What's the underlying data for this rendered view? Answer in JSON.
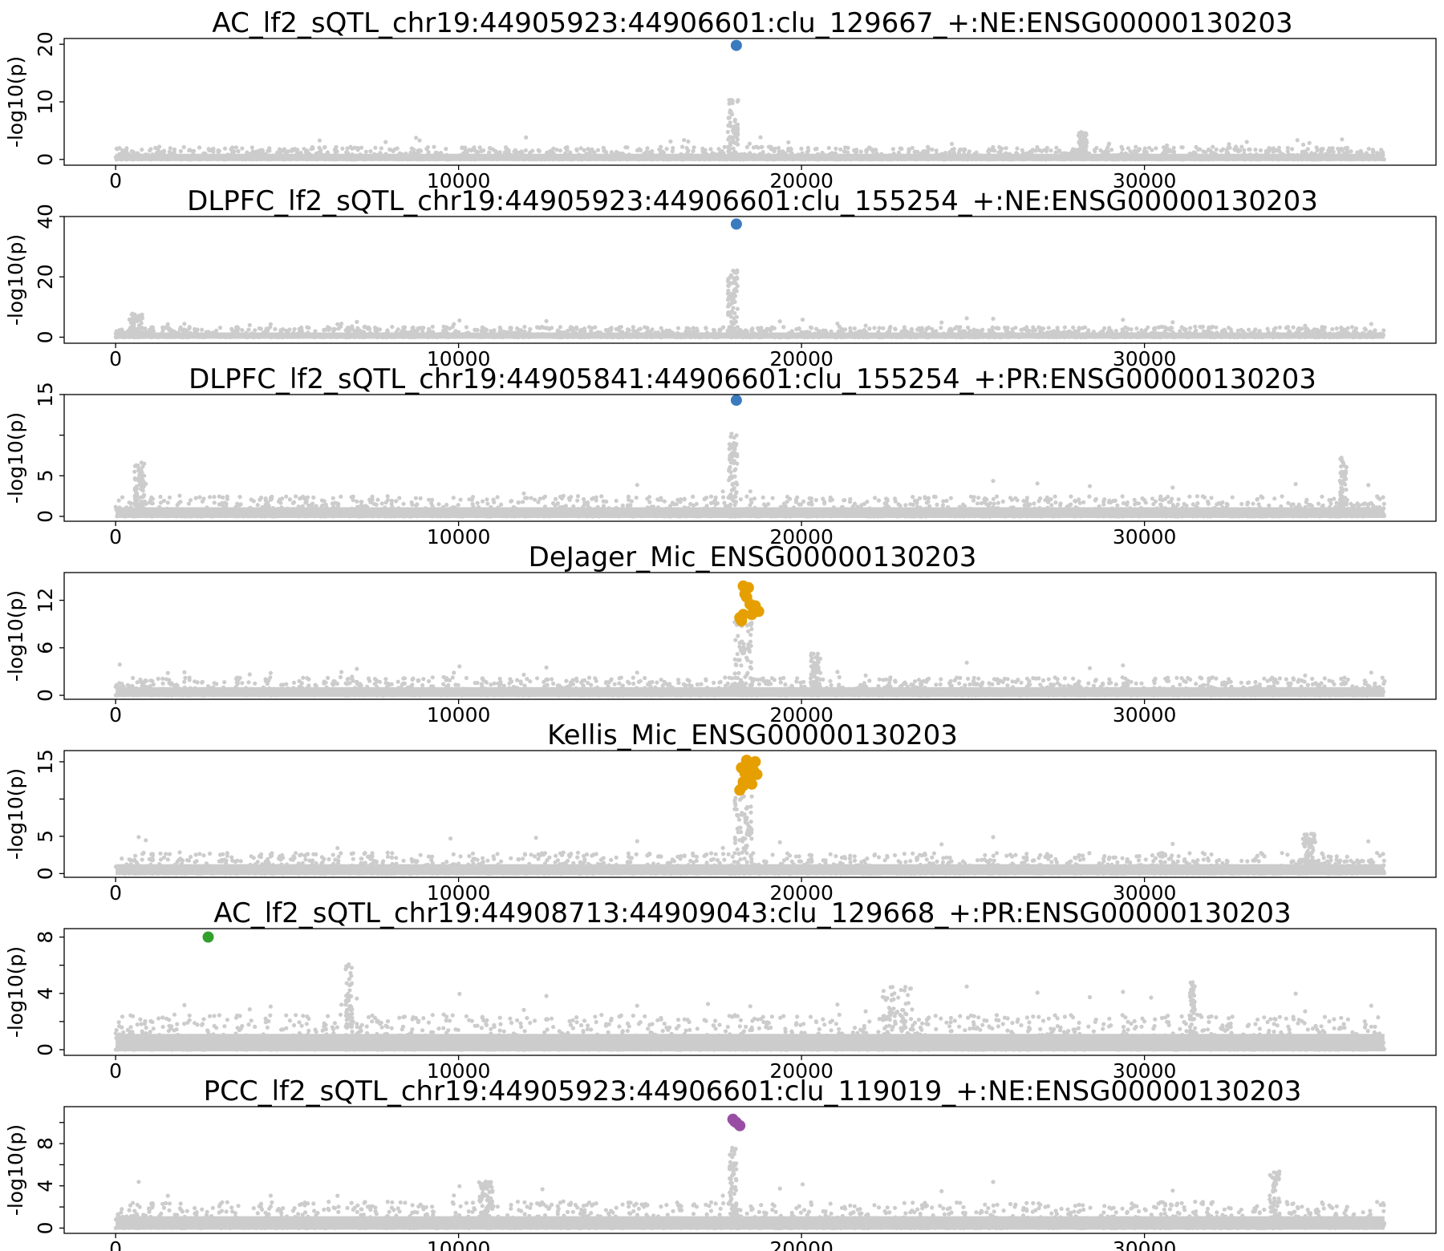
{
  "chart_data": [
    {
      "type": "scatter",
      "title": "AC_lf2_sQTL_chr19:44905923:44906601:clu_129667_+:NE:ENSG00000130203",
      "xlabel": "",
      "ylabel": "-log10(p)",
      "xlim": [
        -1500,
        38500
      ],
      "ylim": [
        -1,
        21
      ],
      "xticks": [
        0,
        10000,
        20000,
        30000
      ],
      "yticks": [
        0,
        10,
        20
      ],
      "x_extent": [
        0,
        37000
      ],
      "background": {
        "color": "#cccccc",
        "baseline_max": 2.2,
        "peaks": [
          {
            "x": 18000,
            "height": 10.5,
            "width": 300
          },
          {
            "x": 28200,
            "height": 4.8,
            "width": 250
          }
        ]
      },
      "highlight": {
        "color": "#3a7bbf",
        "points": [
          {
            "x": 18100,
            "y": 19.8
          }
        ]
      }
    },
    {
      "type": "scatter",
      "title": "DLPFC_lf2_sQTL_chr19:44905923:44906601:clu_155254_+:NE:ENSG00000130203",
      "xlabel": "",
      "ylabel": "-log10(p)",
      "xlim": [
        -1500,
        38500
      ],
      "ylim": [
        -2,
        40
      ],
      "xticks": [
        0,
        10000,
        20000,
        30000
      ],
      "yticks": [
        0,
        20,
        40
      ],
      "x_extent": [
        0,
        37000
      ],
      "background": {
        "color": "#cccccc",
        "baseline_max": 3.5,
        "peaks": [
          {
            "x": 18000,
            "height": 23,
            "width": 300
          },
          {
            "x": 600,
            "height": 8,
            "width": 400
          }
        ]
      },
      "highlight": {
        "color": "#3a7bbf",
        "points": [
          {
            "x": 18100,
            "y": 37.5
          }
        ]
      }
    },
    {
      "type": "scatter",
      "title": "DLPFC_lf2_sQTL_chr19:44905841:44906601:clu_155254_+:PR:ENSG00000130203",
      "xlabel": "",
      "ylabel": "-log10(p)",
      "xlim": [
        -1500,
        38500
      ],
      "ylim": [
        -0.6,
        15
      ],
      "xticks": [
        0,
        10000,
        20000,
        30000
      ],
      "yticks": [
        0,
        5,
        10,
        15
      ],
      "ytick_labels": [
        "0",
        "5",
        "",
        "15"
      ],
      "x_extent": [
        0,
        37000
      ],
      "background": {
        "color": "#cccccc",
        "baseline_max": 2.5,
        "peaks": [
          {
            "x": 18000,
            "height": 10.3,
            "width": 250
          },
          {
            "x": 35800,
            "height": 7.3,
            "width": 200
          },
          {
            "x": 700,
            "height": 6.7,
            "width": 300
          }
        ]
      },
      "highlight": {
        "color": "#3a7bbf",
        "points": [
          {
            "x": 18100,
            "y": 14.3
          }
        ]
      }
    },
    {
      "type": "scatter",
      "title": "DeJager_Mic_ENSG00000130203",
      "xlabel": "",
      "ylabel": "-log10(p)",
      "xlim": [
        -1500,
        38500
      ],
      "ylim": [
        -0.5,
        15.5
      ],
      "xticks": [
        0,
        10000,
        20000,
        30000
      ],
      "yticks": [
        0,
        6,
        12
      ],
      "x_extent": [
        0,
        37000
      ],
      "background": {
        "color": "#cccccc",
        "baseline_max": 2.3,
        "peaks": [
          {
            "x": 18300,
            "height": 9.5,
            "width": 500
          },
          {
            "x": 20400,
            "height": 5.3,
            "width": 300
          }
        ]
      },
      "highlight": {
        "color": "#e69f00",
        "points": [
          {
            "x": 18200,
            "y": 9.8
          },
          {
            "x": 18300,
            "y": 10.2
          },
          {
            "x": 18400,
            "y": 12.4
          },
          {
            "x": 18450,
            "y": 13.6
          },
          {
            "x": 18300,
            "y": 13.8
          },
          {
            "x": 18350,
            "y": 12.8
          },
          {
            "x": 18600,
            "y": 10.9
          },
          {
            "x": 18750,
            "y": 10.6
          },
          {
            "x": 18650,
            "y": 11.3
          },
          {
            "x": 18500,
            "y": 11.5
          },
          {
            "x": 18250,
            "y": 9.4
          },
          {
            "x": 18550,
            "y": 10.2
          }
        ]
      }
    },
    {
      "type": "scatter",
      "title": "Kellis_Mic_ENSG00000130203",
      "xlabel": "",
      "ylabel": "-log10(p)",
      "xlim": [
        -1500,
        38500
      ],
      "ylim": [
        -0.5,
        16.5
      ],
      "xticks": [
        0,
        10000,
        20000,
        30000
      ],
      "yticks": [
        0,
        5,
        10,
        15
      ],
      "ytick_labels": [
        "0",
        "5",
        "",
        "15"
      ],
      "x_extent": [
        0,
        37000
      ],
      "background": {
        "color": "#cccccc",
        "baseline_max": 2.8,
        "peaks": [
          {
            "x": 18300,
            "height": 10.5,
            "width": 500
          },
          {
            "x": 34800,
            "height": 5.4,
            "width": 400
          }
        ]
      },
      "highlight": {
        "color": "#e69f00",
        "points": [
          {
            "x": 18200,
            "y": 11.2
          },
          {
            "x": 18300,
            "y": 12.3
          },
          {
            "x": 18350,
            "y": 13.5
          },
          {
            "x": 18250,
            "y": 14.2
          },
          {
            "x": 18400,
            "y": 15.2
          },
          {
            "x": 18500,
            "y": 14.6
          },
          {
            "x": 18650,
            "y": 15.0
          },
          {
            "x": 18600,
            "y": 13.8
          },
          {
            "x": 18700,
            "y": 13.3
          },
          {
            "x": 18450,
            "y": 12.9
          },
          {
            "x": 18300,
            "y": 11.8
          },
          {
            "x": 18550,
            "y": 12.0
          },
          {
            "x": 18400,
            "y": 14.0
          }
        ]
      }
    },
    {
      "type": "scatter",
      "title": "AC_lf2_sQTL_chr19:44908713:44909043:clu_129668_+:PR:ENSG00000130203",
      "xlabel": "",
      "ylabel": "-log10(p)",
      "xlim": [
        -1500,
        38500
      ],
      "ylim": [
        -0.4,
        8.6
      ],
      "xticks": [
        0,
        10000,
        20000,
        30000
      ],
      "yticks": [
        0,
        2,
        4,
        6,
        8
      ],
      "ytick_labels": [
        "0",
        "",
        "4",
        "",
        "8"
      ],
      "x_extent": [
        0,
        37000
      ],
      "background": {
        "color": "#cccccc",
        "baseline_max": 2.5,
        "peaks": [
          {
            "x": 6800,
            "height": 6.4,
            "width": 200
          },
          {
            "x": 22800,
            "height": 4.5,
            "width": 900
          },
          {
            "x": 31400,
            "height": 4.8,
            "width": 150
          }
        ]
      },
      "highlight": {
        "color": "#33a02c",
        "points": [
          {
            "x": 2700,
            "y": 8.0
          }
        ]
      }
    },
    {
      "type": "scatter",
      "title": "PCC_lf2_sQTL_chr19:44905923:44906601:clu_119019_+:NE:ENSG00000130203",
      "xlabel": "",
      "ylabel": "-log10(p)",
      "xlim": [
        -1500,
        38500
      ],
      "ylim": [
        -0.5,
        11.5
      ],
      "xticks": [
        0,
        10000,
        20000,
        30000
      ],
      "yticks": [
        0,
        2,
        4,
        6,
        8,
        10
      ],
      "ytick_labels": [
        "0",
        "",
        "4",
        "",
        "8",
        ""
      ],
      "x_extent": [
        0,
        37000
      ],
      "background": {
        "color": "#cccccc",
        "baseline_max": 2.5,
        "peaks": [
          {
            "x": 18000,
            "height": 7.7,
            "width": 200
          },
          {
            "x": 33800,
            "height": 5.4,
            "width": 300
          },
          {
            "x": 10800,
            "height": 4.4,
            "width": 400
          }
        ]
      },
      "highlight": {
        "color": "#984ea3",
        "points": [
          {
            "x": 18000,
            "y": 10.3
          },
          {
            "x": 18100,
            "y": 10.0
          },
          {
            "x": 18200,
            "y": 9.7
          },
          {
            "x": 18050,
            "y": 10.1
          }
        ]
      }
    }
  ]
}
